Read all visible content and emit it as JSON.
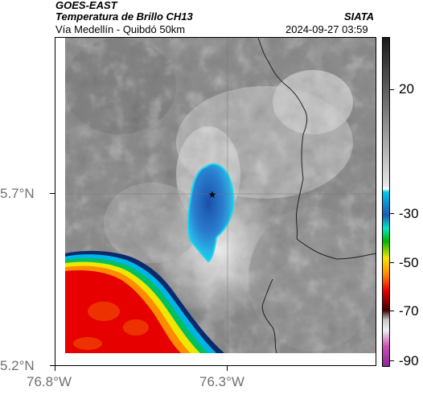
{
  "header": {
    "satellite": "GOES-EAST",
    "product": "Temperatura de Brillo CH13",
    "route": "Vía Medellín - Quibdó 50km",
    "agency": "SIATA",
    "timestamp": "2024-09-27 03:59"
  },
  "axes": {
    "lat_labels": [
      "5.7°N",
      "5.2°N"
    ],
    "lon_labels": [
      "76.8°W",
      "76.3°W"
    ]
  },
  "colorbar": {
    "labels": [
      "20",
      "-30",
      "-50",
      "-70",
      "-90"
    ],
    "colors": {
      "gray_dark": "#1a1a1a",
      "gray_light": "#e6e6e6",
      "cyan": "#00c8e6",
      "blue": "#1a5ab4",
      "green": "#00b400",
      "yellow": "#f0e600",
      "orange": "#ff8c00",
      "red": "#e60000",
      "dark_red": "#3c0000",
      "magenta": "#c850b4"
    }
  },
  "marker": {
    "symbol": "★",
    "name": "location-marker"
  }
}
